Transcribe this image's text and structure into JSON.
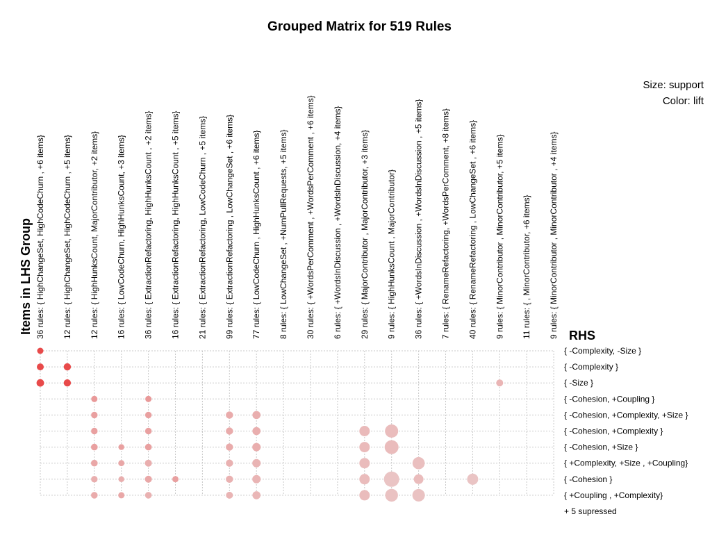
{
  "title": "Grouped Matrix for 519 Rules",
  "legend": {
    "size_label": "Size: support",
    "color_label": "Color: lift"
  },
  "chart_data": {
    "type": "scatter",
    "title": "Grouped Matrix for 519 Rules",
    "xlabel": "Items in LHS Group",
    "ylabel": "RHS",
    "size_encoding": "support",
    "color_encoding": "lift",
    "grid": true,
    "legend_position": "top-right",
    "columns": [
      "36 rules: { HighChangeSet,  HighCodeChurn , +6 items}",
      "12 rules: { HighChangeSet,  HighCodeChurn , +5 items}",
      "12 rules: { HighHunksCount,  MajorContributor, +2 items}",
      "16 rules: { LowCodeChurn,  HighHunksCount, +3 items}",
      "36 rules: { ExtractionRefactoring,  HighHunksCount , +2 items}",
      "16 rules: { ExtractionRefactoring,  HighHunksCount , +5 items}",
      "21 rules: { ExtractionRefactoring,  LowCodeChurn , +5 items}",
      "99 rules: { ExtractionRefactoring ,  LowChangeSet , +6 items}",
      "77 rules: { LowCodeChurn ,  HighHunksCount , +6 items}",
      "8 rules: { LowChangeSet ,  +NumPullRequests, +5 items}",
      "30 rules: { +WordsPerComment ,  +WordsPerComment , +6 items}",
      "6 rules: { +WordsInDiscussion ,  +WordsInDiscussion, +4 items}",
      "29 rules: { MajorContributor ,  MajorContributor, +3 items}",
      "9 rules: { HighHunksCount ,  MajorContributor}",
      "36 rules: { +WordsInDiscussion ,  +WordsInDiscussion , +5 items}",
      "7 rules: { RenameRefactoring,  +WordsPerComment, +8 items}",
      "40 rules: { RenameRefactoring ,  LowChangeSet , +6 items}",
      "9 rules: { MinorContributor ,  MinorContributor, +5 items}",
      "11 rules: {  ,  MinorContributor, +6 items}",
      "9 rules: { MinorContributor ,  MinorContributor , +4 items}"
    ],
    "rows": [
      "{ -Complexity, -Size }",
      "{ -Complexity }",
      "{ -Size }",
      "{ -Cohesion, +Coupling }",
      "{ -Cohesion, +Complexity, +Size }",
      "{ -Cohesion, +Complexity }",
      "{ -Cohesion, +Size }",
      "{ +Complexity, +Size , +Coupling}",
      "{ -Cohesion }",
      "{ +Coupling , +Complexity}"
    ],
    "footer_note": "+ 5 supressed",
    "points": [
      {
        "col": 0,
        "row": 0,
        "size": 0.25,
        "lift": 1.0
      },
      {
        "col": 0,
        "row": 1,
        "size": 0.3,
        "lift": 1.0
      },
      {
        "col": 1,
        "row": 1,
        "size": 0.32,
        "lift": 1.0
      },
      {
        "col": 0,
        "row": 2,
        "size": 0.34,
        "lift": 1.0
      },
      {
        "col": 1,
        "row": 2,
        "size": 0.32,
        "lift": 1.0
      },
      {
        "col": 17,
        "row": 2,
        "size": 0.3,
        "lift": 0.25
      },
      {
        "col": 2,
        "row": 3,
        "size": 0.25,
        "lift": 0.45
      },
      {
        "col": 4,
        "row": 3,
        "size": 0.25,
        "lift": 0.45
      },
      {
        "col": 2,
        "row": 4,
        "size": 0.27,
        "lift": 0.4
      },
      {
        "col": 4,
        "row": 4,
        "size": 0.27,
        "lift": 0.4
      },
      {
        "col": 7,
        "row": 4,
        "size": 0.32,
        "lift": 0.32
      },
      {
        "col": 8,
        "row": 4,
        "size": 0.38,
        "lift": 0.3
      },
      {
        "col": 2,
        "row": 5,
        "size": 0.27,
        "lift": 0.4
      },
      {
        "col": 4,
        "row": 5,
        "size": 0.27,
        "lift": 0.4
      },
      {
        "col": 7,
        "row": 5,
        "size": 0.32,
        "lift": 0.32
      },
      {
        "col": 8,
        "row": 5,
        "size": 0.38,
        "lift": 0.3
      },
      {
        "col": 12,
        "row": 5,
        "size": 0.55,
        "lift": 0.22
      },
      {
        "col": 13,
        "row": 5,
        "size": 0.75,
        "lift": 0.2
      },
      {
        "col": 2,
        "row": 6,
        "size": 0.28,
        "lift": 0.4
      },
      {
        "col": 3,
        "row": 6,
        "size": 0.22,
        "lift": 0.4
      },
      {
        "col": 4,
        "row": 6,
        "size": 0.28,
        "lift": 0.4
      },
      {
        "col": 7,
        "row": 6,
        "size": 0.32,
        "lift": 0.32
      },
      {
        "col": 8,
        "row": 6,
        "size": 0.4,
        "lift": 0.3
      },
      {
        "col": 12,
        "row": 6,
        "size": 0.55,
        "lift": 0.22
      },
      {
        "col": 13,
        "row": 6,
        "size": 0.8,
        "lift": 0.2
      },
      {
        "col": 2,
        "row": 7,
        "size": 0.28,
        "lift": 0.35
      },
      {
        "col": 3,
        "row": 7,
        "size": 0.24,
        "lift": 0.35
      },
      {
        "col": 4,
        "row": 7,
        "size": 0.3,
        "lift": 0.3
      },
      {
        "col": 7,
        "row": 7,
        "size": 0.32,
        "lift": 0.28
      },
      {
        "col": 8,
        "row": 7,
        "size": 0.4,
        "lift": 0.26
      },
      {
        "col": 12,
        "row": 7,
        "size": 0.55,
        "lift": 0.2
      },
      {
        "col": 14,
        "row": 7,
        "size": 0.68,
        "lift": 0.18
      },
      {
        "col": 2,
        "row": 8,
        "size": 0.27,
        "lift": 0.3
      },
      {
        "col": 3,
        "row": 8,
        "size": 0.22,
        "lift": 0.3
      },
      {
        "col": 4,
        "row": 8,
        "size": 0.3,
        "lift": 0.35
      },
      {
        "col": 5,
        "row": 8,
        "size": 0.25,
        "lift": 0.4
      },
      {
        "col": 7,
        "row": 8,
        "size": 0.32,
        "lift": 0.28
      },
      {
        "col": 8,
        "row": 8,
        "size": 0.4,
        "lift": 0.26
      },
      {
        "col": 12,
        "row": 8,
        "size": 0.55,
        "lift": 0.2
      },
      {
        "col": 13,
        "row": 8,
        "size": 0.9,
        "lift": 0.15
      },
      {
        "col": 14,
        "row": 8,
        "size": 0.5,
        "lift": 0.2
      },
      {
        "col": 16,
        "row": 8,
        "size": 0.6,
        "lift": 0.15
      },
      {
        "col": 2,
        "row": 9,
        "size": 0.28,
        "lift": 0.32
      },
      {
        "col": 3,
        "row": 9,
        "size": 0.25,
        "lift": 0.35
      },
      {
        "col": 4,
        "row": 9,
        "size": 0.28,
        "lift": 0.28
      },
      {
        "col": 7,
        "row": 9,
        "size": 0.3,
        "lift": 0.26
      },
      {
        "col": 8,
        "row": 9,
        "size": 0.38,
        "lift": 0.24
      },
      {
        "col": 12,
        "row": 9,
        "size": 0.55,
        "lift": 0.2
      },
      {
        "col": 13,
        "row": 9,
        "size": 0.72,
        "lift": 0.16
      },
      {
        "col": 14,
        "row": 9,
        "size": 0.7,
        "lift": 0.16
      }
    ],
    "colors": {
      "high_lift": "#e84a4a",
      "low_lift": "#ead9d9",
      "grid": "#c8c8c8"
    }
  }
}
